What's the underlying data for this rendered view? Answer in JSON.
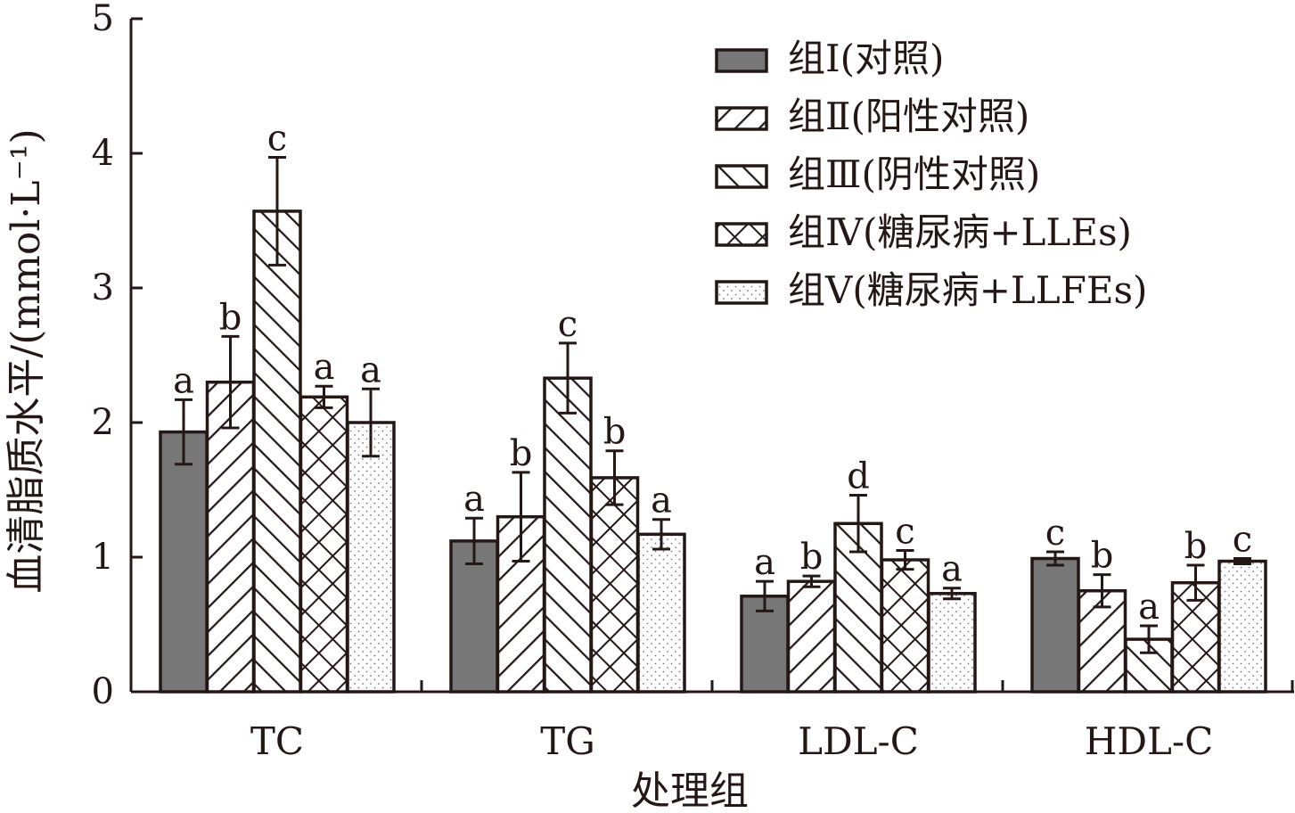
{
  "chart_data": {
    "type": "bar",
    "categories": [
      "TC",
      "TG",
      "LDL-C",
      "HDL-C"
    ],
    "xlabel": "处理组",
    "ylabel": "血清脂质水平/(mmol·L⁻¹)",
    "ylim": [
      0,
      5
    ],
    "yticks": [
      "0",
      "1",
      "2",
      "3",
      "4",
      "5"
    ],
    "grid": false,
    "legend_position": "top-right",
    "series": [
      {
        "name": "组Ⅰ(对照)",
        "fill": "#777777",
        "pattern": "solid",
        "values": [
          1.93,
          1.12,
          0.71,
          0.99
        ],
        "errors": [
          0.24,
          0.17,
          0.11,
          0.05
        ],
        "labels": [
          "a",
          "a",
          "a",
          "c"
        ]
      },
      {
        "name": "组Ⅱ(阳性对照)",
        "fill": "#ffffff",
        "pattern": "forward-diagonal",
        "values": [
          2.3,
          1.3,
          0.82,
          0.75
        ],
        "errors": [
          0.34,
          0.33,
          0.04,
          0.12
        ],
        "labels": [
          "b",
          "b",
          "b",
          "b"
        ]
      },
      {
        "name": "组Ⅲ(阴性对照)",
        "fill": "#ffffff",
        "pattern": "backward-diagonal",
        "values": [
          3.57,
          2.33,
          1.25,
          0.39
        ],
        "errors": [
          0.4,
          0.26,
          0.21,
          0.1
        ],
        "labels": [
          "c",
          "c",
          "d",
          "a"
        ]
      },
      {
        "name": "组Ⅳ(糖尿病+LLEs)",
        "fill": "#ffffff",
        "pattern": "cross-hatch",
        "values": [
          2.19,
          1.59,
          0.98,
          0.81
        ],
        "errors": [
          0.08,
          0.2,
          0.07,
          0.13
        ],
        "labels": [
          "a",
          "b",
          "c",
          "b"
        ]
      },
      {
        "name": "组Ⅴ(糖尿病+LLFEs)",
        "fill": "#ffffff",
        "pattern": "dotted",
        "values": [
          2.0,
          1.17,
          0.73,
          0.97
        ],
        "errors": [
          0.25,
          0.11,
          0.04,
          0.02
        ],
        "labels": [
          "a",
          "a",
          "a",
          "c"
        ]
      }
    ]
  }
}
